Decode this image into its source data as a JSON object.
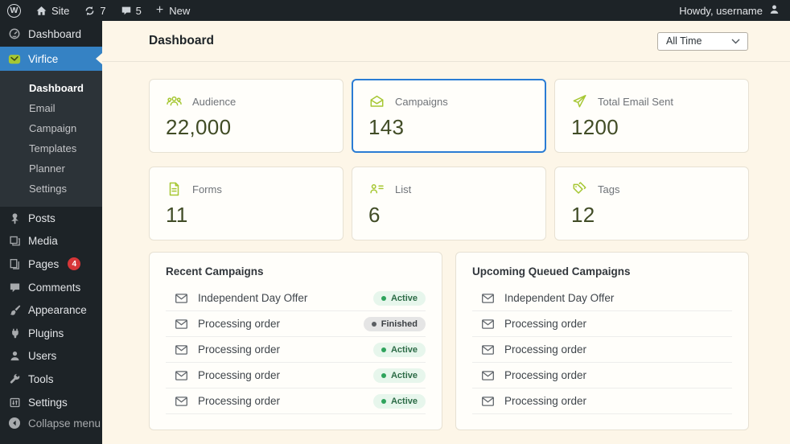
{
  "admin_bar": {
    "wp_logo": "W",
    "site_label": "Site",
    "updates_count": "7",
    "comments_count": "5",
    "new_label": "New",
    "howdy": "Howdy, username"
  },
  "sidebar": {
    "dashboard_label": "Dashboard",
    "plugin": {
      "label": "Virfice",
      "submenu": [
        "Dashboard",
        "Email",
        "Campaign",
        "Templates",
        "Planner",
        "Settings"
      ],
      "current_submenu": "Dashboard"
    },
    "items": [
      {
        "label": "Posts",
        "icon": "pin-icon"
      },
      {
        "label": "Media",
        "icon": "media-icon"
      },
      {
        "label": "Pages",
        "icon": "pages-icon",
        "badge": "4"
      },
      {
        "label": "Comments",
        "icon": "comments-icon"
      },
      {
        "label": "Appearance",
        "icon": "appearance-icon"
      },
      {
        "label": "Plugins",
        "icon": "plugins-icon"
      },
      {
        "label": "Users",
        "icon": "users-icon"
      },
      {
        "label": "Tools",
        "icon": "tools-icon"
      },
      {
        "label": "Settings",
        "icon": "settings-icon"
      }
    ],
    "collapse_label": "Collapse menu"
  },
  "header": {
    "title": "Dashboard",
    "filter_value": "All Time"
  },
  "stats": [
    {
      "label": "Audience",
      "value": "22,000",
      "icon": "audience-icon",
      "selected": false
    },
    {
      "label": "Campaigns",
      "value": "143",
      "icon": "campaigns-icon",
      "selected": true
    },
    {
      "label": "Total Email Sent",
      "value": "1200",
      "icon": "send-icon",
      "selected": false
    },
    {
      "label": "Forms",
      "value": "11",
      "icon": "form-icon",
      "selected": false
    },
    {
      "label": "List",
      "value": "6",
      "icon": "list-icon",
      "selected": false
    },
    {
      "label": "Tags",
      "value": "12",
      "icon": "tag-icon",
      "selected": false
    }
  ],
  "recent_campaigns": {
    "title": "Recent Campaigns",
    "rows": [
      {
        "name": "Independent Day Offer",
        "status": "Active"
      },
      {
        "name": "Processing order",
        "status": "Finished"
      },
      {
        "name": "Processing order",
        "status": "Active"
      },
      {
        "name": "Processing order",
        "status": "Active"
      },
      {
        "name": "Processing order",
        "status": "Active"
      }
    ]
  },
  "upcoming_campaigns": {
    "title": "Upcoming Queued Campaigns",
    "rows": [
      {
        "name": "Independent Day Offer"
      },
      {
        "name": "Processing order"
      },
      {
        "name": "Processing order"
      },
      {
        "name": "Processing order"
      },
      {
        "name": "Processing order"
      }
    ]
  },
  "colors": {
    "accent_lime": "#a6c733",
    "selected_border_blue": "#2a7cd4",
    "sidebar_highlight_blue": "#3582c4",
    "active_badge_green": "#2fa35c",
    "notification_red": "#d63638",
    "page_background": "#fdf6e8",
    "chrome_dark": "#1d2327",
    "stat_value_olive": "#414c26"
  }
}
